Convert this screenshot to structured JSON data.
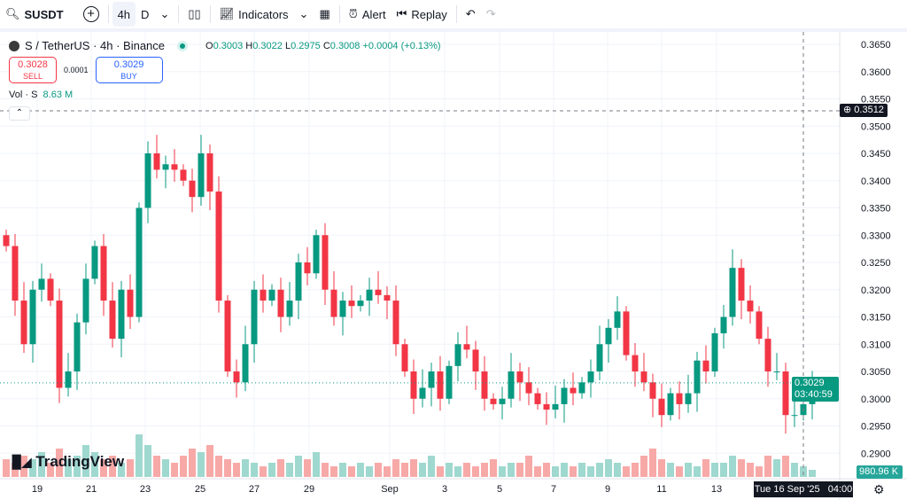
{
  "toolbar": {
    "symbol": "SUSDT",
    "intervals": [
      "4h",
      "D"
    ],
    "indicators": "Indicators",
    "alert": "Alert",
    "replay": "Replay"
  },
  "legend": {
    "title": "S / TetherUS · 4h · Binance",
    "o_label": "O",
    "o": "0.3003",
    "h_label": "H",
    "h": "0.3022",
    "l_label": "L",
    "l": "0.2975",
    "c_label": "C",
    "c": "0.3008",
    "change": "+0.0004 (+0.13%)"
  },
  "trade": {
    "sell_price": "0.3028",
    "sell": "SELL",
    "spread": "0.0001",
    "buy_price": "0.3029",
    "buy": "BUY"
  },
  "volume": {
    "label": "Vol · S",
    "value": "8.63 M",
    "last": "980.96 K"
  },
  "price_axis": [
    "0.3650",
    "0.3600",
    "0.3550",
    "0.3500",
    "0.3450",
    "0.3400",
    "0.3350",
    "0.3300",
    "0.3250",
    "0.3200",
    "0.3150",
    "0.3100",
    "0.3050",
    "0.3000",
    "0.2950",
    "0.2900"
  ],
  "time_axis": [
    "19",
    "21",
    "23",
    "25",
    "27",
    "29",
    "Sep",
    "3",
    "5",
    "7",
    "9",
    "11",
    "13"
  ],
  "crosshair": {
    "price": "0.3512",
    "time": "Tue 16 Sep '25",
    "hour": "04:00"
  },
  "current": {
    "price": "0.3029",
    "countdown": "03:40:59"
  },
  "watermark": "TradingView",
  "colors": {
    "up": "#089981",
    "down": "#f23645",
    "up_vol": "#9fd8cf",
    "down_vol": "#f7a9a7"
  },
  "chart_data": {
    "type": "candlestick",
    "ylim": [
      0.288,
      0.3665
    ],
    "closes": [
      0.328,
      0.318,
      0.31,
      0.32,
      0.322,
      0.318,
      0.302,
      0.305,
      0.314,
      0.322,
      0.328,
      0.318,
      0.311,
      0.32,
      0.315,
      0.335,
      0.345,
      0.342,
      0.343,
      0.342,
      0.34,
      0.337,
      0.345,
      0.338,
      0.318,
      0.305,
      0.303,
      0.31,
      0.32,
      0.318,
      0.32,
      0.315,
      0.318,
      0.325,
      0.323,
      0.33,
      0.32,
      0.315,
      0.318,
      0.317,
      0.318,
      0.32,
      0.319,
      0.318,
      0.31,
      0.305,
      0.3,
      0.302,
      0.305,
      0.3,
      0.306,
      0.31,
      0.309,
      0.305,
      0.3,
      0.299,
      0.3,
      0.305,
      0.303,
      0.301,
      0.299,
      0.298,
      0.299,
      0.302,
      0.301,
      0.303,
      0.305,
      0.31,
      0.313,
      0.316,
      0.308,
      0.305,
      0.303,
      0.3,
      0.297,
      0.301,
      0.299,
      0.301,
      0.307,
      0.305,
      0.312,
      0.315,
      0.324,
      0.318,
      0.316,
      0.311,
      0.305,
      0.305,
      0.297,
      0.297,
      0.299,
      0.3029
    ],
    "volumes": [
      5,
      4,
      6,
      5,
      7,
      4,
      8,
      5,
      6,
      9,
      7,
      5,
      6,
      4,
      5,
      12,
      9,
      6,
      5,
      4,
      6,
      8,
      7,
      9,
      6,
      5,
      4,
      5,
      4,
      3,
      4,
      5,
      4,
      6,
      5,
      7,
      4,
      3,
      4,
      3,
      4,
      3,
      4,
      3,
      5,
      4,
      5,
      4,
      6,
      3,
      4,
      3,
      4,
      3,
      4,
      5,
      3,
      4,
      4,
      6,
      3,
      4,
      3,
      4,
      3,
      4,
      3,
      4,
      5,
      4,
      3,
      4,
      6,
      8,
      5,
      4,
      3,
      4,
      3,
      5,
      4,
      4,
      6,
      5,
      4,
      3,
      6,
      5,
      6,
      4,
      3,
      2
    ]
  }
}
